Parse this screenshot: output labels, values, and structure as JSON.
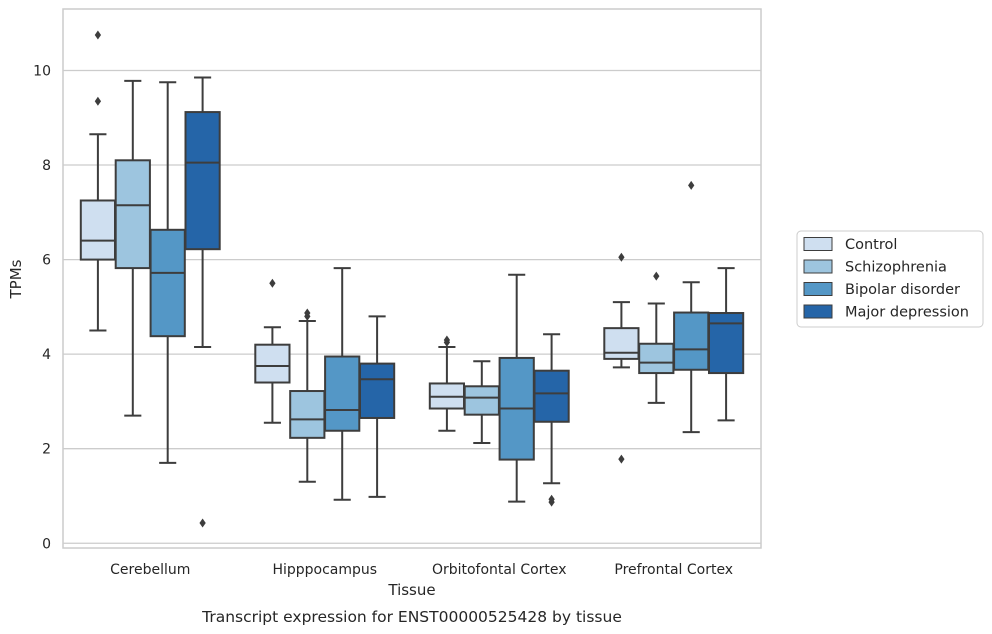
{
  "chart_data": {
    "type": "box",
    "caption": "Transcript expression for ENST00000525428 by tissue",
    "xlabel": "Tissue",
    "ylabel": "TPMs",
    "ylim": [
      -0.1,
      11.3
    ],
    "yticks": [
      0,
      2,
      4,
      6,
      8,
      10
    ],
    "grid": "horizontal",
    "legend_position": "right",
    "categories": [
      "Cerebellum",
      "Hipppocampus",
      "Orbitofontal Cortex",
      "Prefrontal Cortex"
    ],
    "series": [
      {
        "name": "Control",
        "color": "#cfdff0",
        "boxes": [
          {
            "whislo": 4.5,
            "q1": 6.0,
            "med": 6.4,
            "q3": 7.25,
            "whishi": 8.65,
            "fliers": [
              9.35,
              10.75
            ]
          },
          {
            "whislo": 2.55,
            "q1": 3.4,
            "med": 3.75,
            "q3": 4.2,
            "whishi": 4.57,
            "fliers": [
              5.5
            ]
          },
          {
            "whislo": 2.38,
            "q1": 2.85,
            "med": 3.1,
            "q3": 3.38,
            "whishi": 4.15,
            "fliers": [
              4.25,
              4.3
            ]
          },
          {
            "whislo": 3.72,
            "q1": 3.9,
            "med": 4.03,
            "q3": 4.55,
            "whishi": 5.1,
            "fliers": [
              1.78,
              6.05
            ]
          }
        ]
      },
      {
        "name": "Schizophrenia",
        "color": "#9dc5df",
        "boxes": [
          {
            "whislo": 2.7,
            "q1": 5.82,
            "med": 7.15,
            "q3": 8.1,
            "whishi": 9.78,
            "fliers": []
          },
          {
            "whislo": 1.3,
            "q1": 2.23,
            "med": 2.62,
            "q3": 3.22,
            "whishi": 4.7,
            "fliers": [
              4.8,
              4.87
            ]
          },
          {
            "whislo": 2.12,
            "q1": 2.72,
            "med": 3.08,
            "q3": 3.32,
            "whishi": 3.85,
            "fliers": []
          },
          {
            "whislo": 2.97,
            "q1": 3.6,
            "med": 3.82,
            "q3": 4.22,
            "whishi": 5.07,
            "fliers": [
              5.65
            ]
          }
        ]
      },
      {
        "name": "Bipolar disorder",
        "color": "#5497c6",
        "boxes": [
          {
            "whislo": 1.7,
            "q1": 4.38,
            "med": 5.72,
            "q3": 6.63,
            "whishi": 9.75,
            "fliers": []
          },
          {
            "whislo": 0.92,
            "q1": 2.38,
            "med": 2.82,
            "q3": 3.95,
            "whishi": 5.82,
            "fliers": []
          },
          {
            "whislo": 0.88,
            "q1": 1.77,
            "med": 2.85,
            "q3": 3.92,
            "whishi": 5.68,
            "fliers": []
          },
          {
            "whislo": 2.35,
            "q1": 3.67,
            "med": 4.1,
            "q3": 4.88,
            "whishi": 5.52,
            "fliers": [
              7.57
            ]
          }
        ]
      },
      {
        "name": "Major depression",
        "color": "#2565a8",
        "boxes": [
          {
            "whislo": 4.15,
            "q1": 6.22,
            "med": 8.05,
            "q3": 9.12,
            "whishi": 9.85,
            "fliers": [
              0.43
            ]
          },
          {
            "whislo": 0.98,
            "q1": 2.65,
            "med": 3.47,
            "q3": 3.8,
            "whishi": 4.8,
            "fliers": []
          },
          {
            "whislo": 1.27,
            "q1": 2.57,
            "med": 3.17,
            "q3": 3.65,
            "whishi": 4.42,
            "fliers": [
              0.87,
              0.93
            ]
          },
          {
            "whislo": 2.6,
            "q1": 3.6,
            "med": 4.65,
            "q3": 4.87,
            "whishi": 5.82,
            "fliers": []
          }
        ]
      }
    ]
  }
}
